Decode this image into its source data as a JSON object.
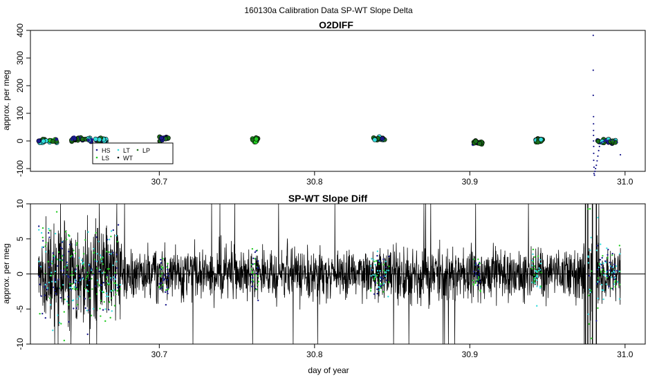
{
  "figure": {
    "suptitle": "160130a   Calibration Data SP-WT Slope Delta",
    "xlabel": "day of year"
  },
  "colors": {
    "HS": "#1a1a8c",
    "LS": "#22cc22",
    "LT": "#33dddd",
    "LP": "#1a6e1a",
    "WT": "#000000",
    "trace": "#000000"
  },
  "chart_data": [
    {
      "type": "scatter",
      "title": "O2DIFF",
      "ylabel": "approx. per meg",
      "xlim": [
        30.617,
        31.013
      ],
      "ylim": [
        -110,
        400
      ],
      "xticks": [
        "30.7",
        "30.8",
        "30.9",
        "31.0"
      ],
      "yticks": [
        "-100",
        "0",
        "100",
        "200",
        "300",
        "400"
      ],
      "legend": {
        "position": "bottom-left",
        "entries": [
          "HS",
          "LT",
          "LP",
          "LS",
          "WT"
        ]
      },
      "clusters": [
        {
          "x": 30.628,
          "y": 0,
          "spread": 0.006,
          "mix": [
            "HS",
            "LT",
            "LS",
            "LP"
          ]
        },
        {
          "x": 30.648,
          "y": 8,
          "spread": 0.005,
          "mix": [
            "HS",
            "LP"
          ]
        },
        {
          "x": 30.66,
          "y": 4,
          "spread": 0.006,
          "mix": [
            "HS",
            "LT",
            "LP"
          ]
        },
        {
          "x": 30.703,
          "y": 10,
          "spread": 0.003,
          "mix": [
            "HS",
            "LP"
          ]
        },
        {
          "x": 30.762,
          "y": 3,
          "spread": 0.002,
          "mix": [
            "LS",
            "LP"
          ]
        },
        {
          "x": 30.842,
          "y": 5,
          "spread": 0.004,
          "mix": [
            "LP",
            "LT",
            "HS"
          ]
        },
        {
          "x": 30.905,
          "y": -4,
          "spread": 0.003,
          "mix": [
            "LP",
            "HS"
          ]
        },
        {
          "x": 30.944,
          "y": 2,
          "spread": 0.003,
          "mix": [
            "LP",
            "LT"
          ]
        },
        {
          "x": 30.988,
          "y": 0,
          "spread": 0.006,
          "mix": [
            "HS",
            "LT",
            "LP"
          ]
        }
      ],
      "spike_series": {
        "name": "HS",
        "x": [
          30.9795,
          30.9795,
          30.9795,
          30.9797,
          30.9797,
          30.9797,
          30.9797,
          30.9797,
          30.9798,
          30.9798,
          30.9798,
          30.98,
          30.98,
          30.9803,
          30.9806,
          30.981,
          30.9815,
          30.982,
          30.9825,
          30.983,
          30.9835,
          30.984,
          30.985,
          30.986,
          30.987,
          30.989,
          30.991,
          30.993,
          30.995,
          30.997
        ],
        "y": [
          382,
          256,
          165,
          88,
          62,
          38,
          20,
          0,
          -20,
          -45,
          -70,
          -95,
          -118,
          -124,
          -110,
          -100,
          -88,
          -72,
          -55,
          -35,
          -20,
          -10,
          -5,
          -2,
          0,
          2,
          3,
          2,
          -5,
          -50
        ]
      }
    },
    {
      "type": "line",
      "title": "SP-WT Slope Diff",
      "ylabel": "approx. per meg",
      "xlabel": "day of year",
      "xlim": [
        30.617,
        31.013
      ],
      "ylim": [
        -10,
        10
      ],
      "xticks": [
        "30.7",
        "30.8",
        "30.9",
        "31.0"
      ],
      "yticks": [
        "-10",
        "-5",
        "0",
        "5",
        "10"
      ],
      "reference_line": 0,
      "x_range": [
        30.622,
        30.997
      ],
      "noise_amplitude": 3.3,
      "high_noise_windows": [
        {
          "x": [
            30.622,
            30.675
          ],
          "amplitude": 6.5
        },
        {
          "x": [
            30.975,
            30.983
          ],
          "amplitude": 9.0
        }
      ],
      "gaps": [
        {
          "x": [
            30.9745,
            30.976
          ]
        },
        {
          "x": [
            30.979,
            30.9815
          ]
        }
      ],
      "colored_point_windows": [
        {
          "x": [
            30.622,
            30.675
          ],
          "mix": [
            "HS",
            "LS",
            "LT"
          ]
        },
        {
          "x": [
            30.7,
            30.706
          ],
          "mix": [
            "LS",
            "HS"
          ]
        },
        {
          "x": [
            30.759,
            30.764
          ],
          "mix": [
            "LS",
            "HS"
          ]
        },
        {
          "x": [
            30.836,
            30.848
          ],
          "mix": [
            "LS",
            "LT",
            "HS"
          ]
        },
        {
          "x": [
            30.902,
            30.907
          ],
          "mix": [
            "LS",
            "HS"
          ]
        },
        {
          "x": [
            30.94,
            30.946
          ],
          "mix": [
            "LT",
            "LS"
          ]
        },
        {
          "x": [
            30.975,
            30.997
          ],
          "mix": [
            "HS",
            "LS",
            "LT"
          ]
        }
      ]
    }
  ]
}
